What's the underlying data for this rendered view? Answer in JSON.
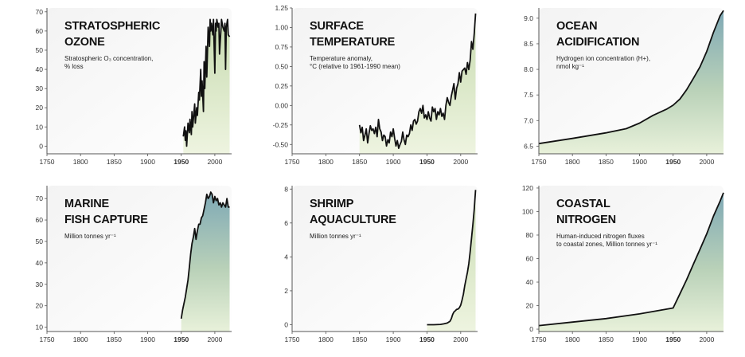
{
  "colors": {
    "line": "#111111",
    "axis": "#555555",
    "highlight_tick": "#c8102e",
    "fill_top": "#7aa6b3",
    "fill_bottom": "#e4efd0",
    "panel_bg": "#f1f1f1"
  },
  "chart_data": [
    {
      "type": "area",
      "title_lines": [
        "STRATOSPHERIC",
        "OZONE"
      ],
      "subtitle_lines": [
        "Stratospheric O₃ concentration,",
        "% loss"
      ],
      "x": [
        1953,
        1955,
        1956,
        1957,
        1958,
        1960,
        1962,
        1963,
        1965,
        1966,
        1967,
        1970,
        1971,
        1973,
        1974,
        1976,
        1977,
        1979,
        1980,
        1981,
        1983,
        1984,
        1985,
        1987,
        1988,
        1989,
        1990,
        1992,
        1993,
        1994,
        1995,
        1997,
        1998,
        2000,
        2001,
        2002,
        2003,
        2005,
        2006,
        2007,
        2009,
        2010,
        2012,
        2014,
        2015,
        2016,
        2017,
        2019,
        2020,
        2022
      ],
      "values": [
        5,
        10,
        3,
        8,
        0,
        12,
        7,
        14,
        6,
        18,
        10,
        22,
        12,
        20,
        16,
        28,
        24,
        40,
        26,
        34,
        18,
        44,
        30,
        52,
        36,
        48,
        62,
        52,
        66,
        60,
        64,
        58,
        66,
        38,
        64,
        60,
        66,
        62,
        64,
        48,
        60,
        66,
        62,
        60,
        64,
        40,
        62,
        66,
        58,
        57
      ],
      "xlim": [
        1750,
        2025
      ],
      "ylim": [
        -4,
        72
      ],
      "yticks": [
        0,
        10,
        20,
        30,
        40,
        50,
        60,
        70
      ],
      "yticklabels": [
        "0",
        "10",
        "20",
        "30",
        "40",
        "50",
        "60",
        "70"
      ],
      "xticks": [
        1750,
        1800,
        1850,
        1900,
        1950,
        2000
      ],
      "xticklabels": [
        "1750",
        "1800",
        "1850",
        "1900",
        "1950",
        "2000"
      ],
      "highlight_x": "1950",
      "fill_gradient": "green"
    },
    {
      "type": "area",
      "title_lines": [
        "SURFACE",
        "TEMPERATURE"
      ],
      "subtitle_lines": [
        "Temperature anomaly,",
        "°C (relative to 1961-1990 mean)"
      ],
      "x": [
        1850,
        1852,
        1854,
        1856,
        1858,
        1860,
        1862,
        1864,
        1866,
        1868,
        1870,
        1872,
        1874,
        1876,
        1878,
        1880,
        1882,
        1884,
        1886,
        1888,
        1890,
        1892,
        1894,
        1896,
        1898,
        1900,
        1902,
        1904,
        1906,
        1908,
        1910,
        1912,
        1914,
        1916,
        1918,
        1920,
        1922,
        1924,
        1926,
        1928,
        1930,
        1932,
        1934,
        1936,
        1938,
        1940,
        1942,
        1944,
        1946,
        1948,
        1950,
        1952,
        1954,
        1956,
        1958,
        1960,
        1962,
        1964,
        1966,
        1968,
        1970,
        1972,
        1974,
        1976,
        1978,
        1980,
        1982,
        1984,
        1986,
        1988,
        1990,
        1992,
        1994,
        1996,
        1998,
        2000,
        2002,
        2004,
        2006,
        2008,
        2010,
        2012,
        2014,
        2016,
        2018,
        2020,
        2022
      ],
      "values": [
        -0.25,
        -0.35,
        -0.28,
        -0.45,
        -0.38,
        -0.3,
        -0.48,
        -0.36,
        -0.26,
        -0.32,
        -0.3,
        -0.36,
        -0.28,
        -0.4,
        -0.18,
        -0.3,
        -0.34,
        -0.45,
        -0.38,
        -0.4,
        -0.52,
        -0.44,
        -0.48,
        -0.34,
        -0.4,
        -0.3,
        -0.42,
        -0.52,
        -0.45,
        -0.55,
        -0.5,
        -0.46,
        -0.34,
        -0.44,
        -0.5,
        -0.38,
        -0.4,
        -0.36,
        -0.25,
        -0.32,
        -0.2,
        -0.18,
        -0.24,
        -0.2,
        -0.08,
        -0.04,
        -0.1,
        0.0,
        -0.16,
        -0.12,
        -0.18,
        -0.08,
        -0.16,
        -0.2,
        -0.02,
        -0.08,
        -0.04,
        -0.18,
        -0.08,
        -0.12,
        -0.04,
        -0.14,
        -0.1,
        -0.18,
        0.0,
        0.1,
        0.04,
        0.0,
        0.12,
        0.2,
        0.28,
        0.08,
        0.22,
        0.28,
        0.42,
        0.3,
        0.44,
        0.46,
        0.48,
        0.4,
        0.55,
        0.46,
        0.58,
        0.82,
        0.72,
        0.92,
        1.18
      ],
      "xlim": [
        1750,
        2025
      ],
      "ylim": [
        -0.62,
        1.25
      ],
      "yticks": [
        -0.5,
        -0.25,
        0,
        0.25,
        0.5,
        0.75,
        1.0,
        1.25
      ],
      "yticklabels": [
        "-0.50",
        "-0.25",
        "0.00",
        "0.25",
        "0.50",
        "0.75",
        "1.00",
        "1.25"
      ],
      "xticks": [
        1750,
        1800,
        1850,
        1900,
        1950,
        2000
      ],
      "xticklabels": [
        "1750",
        "1800",
        "1850",
        "1900",
        "1950",
        "2000"
      ],
      "highlight_x": "1950",
      "fill_gradient": "green"
    },
    {
      "type": "area",
      "title_lines": [
        "OCEAN",
        "ACIDIFICATION"
      ],
      "subtitle_lines": [
        "Hydrogen ion concentration (H+),",
        "nmol kg⁻¹"
      ],
      "x": [
        1750,
        1800,
        1850,
        1880,
        1900,
        1920,
        1940,
        1950,
        1960,
        1970,
        1980,
        1990,
        2000,
        2010,
        2020,
        2025
      ],
      "values": [
        6.55,
        6.65,
        6.76,
        6.84,
        6.95,
        7.1,
        7.22,
        7.3,
        7.42,
        7.6,
        7.82,
        8.05,
        8.35,
        8.72,
        9.05,
        9.15
      ],
      "xlim": [
        1750,
        2025
      ],
      "ylim": [
        6.35,
        9.2
      ],
      "yticks": [
        6.5,
        7.0,
        7.5,
        8.0,
        8.5,
        9.0
      ],
      "yticklabels": [
        "6.5",
        "7.0",
        "7.5",
        "8.0",
        "8.5",
        "9.0"
      ],
      "xticks": [
        1750,
        1800,
        1850,
        1900,
        1950,
        2000
      ],
      "xticklabels": [
        "1750",
        "1800",
        "1850",
        "1900",
        "1950",
        "2000"
      ],
      "highlight_x": "1950",
      "fill_gradient": "teal"
    },
    {
      "type": "area",
      "title_lines": [
        "MARINE",
        "FISH CAPTURE"
      ],
      "subtitle_lines": [
        "Million tonnes yr⁻¹"
      ],
      "x": [
        1950,
        1952,
        1954,
        1956,
        1958,
        1960,
        1962,
        1964,
        1966,
        1968,
        1970,
        1972,
        1974,
        1976,
        1978,
        1980,
        1982,
        1984,
        1986,
        1988,
        1990,
        1992,
        1994,
        1996,
        1998,
        2000,
        2002,
        2004,
        2006,
        2008,
        2010,
        2012,
        2014,
        2016,
        2018,
        2020,
        2022
      ],
      "values": [
        14,
        18,
        21,
        24,
        28,
        32,
        38,
        44,
        49,
        52,
        56,
        51,
        55,
        58,
        58,
        61,
        62,
        65,
        68,
        72,
        70,
        71,
        73,
        72,
        68,
        71,
        69,
        70,
        67,
        68,
        66,
        68,
        67,
        66,
        70,
        66,
        66
      ],
      "xlim": [
        1750,
        2025
      ],
      "ylim": [
        8,
        76
      ],
      "yticks": [
        10,
        20,
        30,
        40,
        50,
        60,
        70
      ],
      "yticklabels": [
        "10",
        "20",
        "30",
        "40",
        "50",
        "60",
        "70"
      ],
      "xticks": [
        1750,
        1800,
        1850,
        1900,
        1950,
        2000
      ],
      "xticklabels": [
        "1750",
        "1800",
        "1850",
        "1900",
        "1950",
        "2000"
      ],
      "highlight_x": "1950",
      "fill_gradient": "teal"
    },
    {
      "type": "area",
      "title_lines": [
        "SHRIMP",
        "AQUACULTURE"
      ],
      "subtitle_lines": [
        "Million tonnes yr⁻¹"
      ],
      "x": [
        1950,
        1960,
        1970,
        1975,
        1980,
        1984,
        1986,
        1988,
        1990,
        1992,
        1994,
        1996,
        1998,
        2000,
        2002,
        2004,
        2006,
        2008,
        2010,
        2012,
        2014,
        2016,
        2018,
        2020,
        2022
      ],
      "values": [
        0.0,
        0.0,
        0.02,
        0.05,
        0.1,
        0.2,
        0.35,
        0.6,
        0.75,
        0.82,
        0.9,
        0.92,
        1.0,
        1.15,
        1.45,
        1.8,
        2.3,
        2.7,
        3.1,
        3.6,
        4.3,
        5.1,
        5.9,
        6.8,
        7.95
      ],
      "xlim": [
        1750,
        2025
      ],
      "ylim": [
        -0.4,
        8.2
      ],
      "yticks": [
        0,
        2,
        4,
        6,
        8
      ],
      "yticklabels": [
        "0",
        "2",
        "4",
        "6",
        "8"
      ],
      "xticks": [
        1750,
        1800,
        1850,
        1900,
        1950,
        2000
      ],
      "xticklabels": [
        "1750",
        "1800",
        "1850",
        "1900",
        "1950",
        "2000"
      ],
      "highlight_x": "1950",
      "fill_gradient": "green"
    },
    {
      "type": "area",
      "title_lines": [
        "COASTAL",
        "NITROGEN"
      ],
      "subtitle_lines": [
        "Human-induced nitrogen fluxes",
        "to coastal zones, Million tonnes yr⁻¹"
      ],
      "x": [
        1750,
        1800,
        1850,
        1900,
        1950,
        1960,
        1970,
        1980,
        1990,
        2000,
        2010,
        2020,
        2025
      ],
      "values": [
        3,
        6,
        9,
        13,
        18,
        30,
        42,
        55,
        68,
        81,
        96,
        109,
        116
      ],
      "xlim": [
        1750,
        2025
      ],
      "ylim": [
        -2,
        122
      ],
      "yticks": [
        0,
        20,
        40,
        60,
        80,
        100,
        120
      ],
      "yticklabels": [
        "0",
        "20",
        "40",
        "60",
        "80",
        "100",
        "120"
      ],
      "xticks": [
        1750,
        1800,
        1850,
        1900,
        1950,
        2000
      ],
      "xticklabels": [
        "1750",
        "1800",
        "1850",
        "1900",
        "1950",
        "2000"
      ],
      "highlight_x": "1950",
      "fill_gradient": "teal"
    }
  ]
}
